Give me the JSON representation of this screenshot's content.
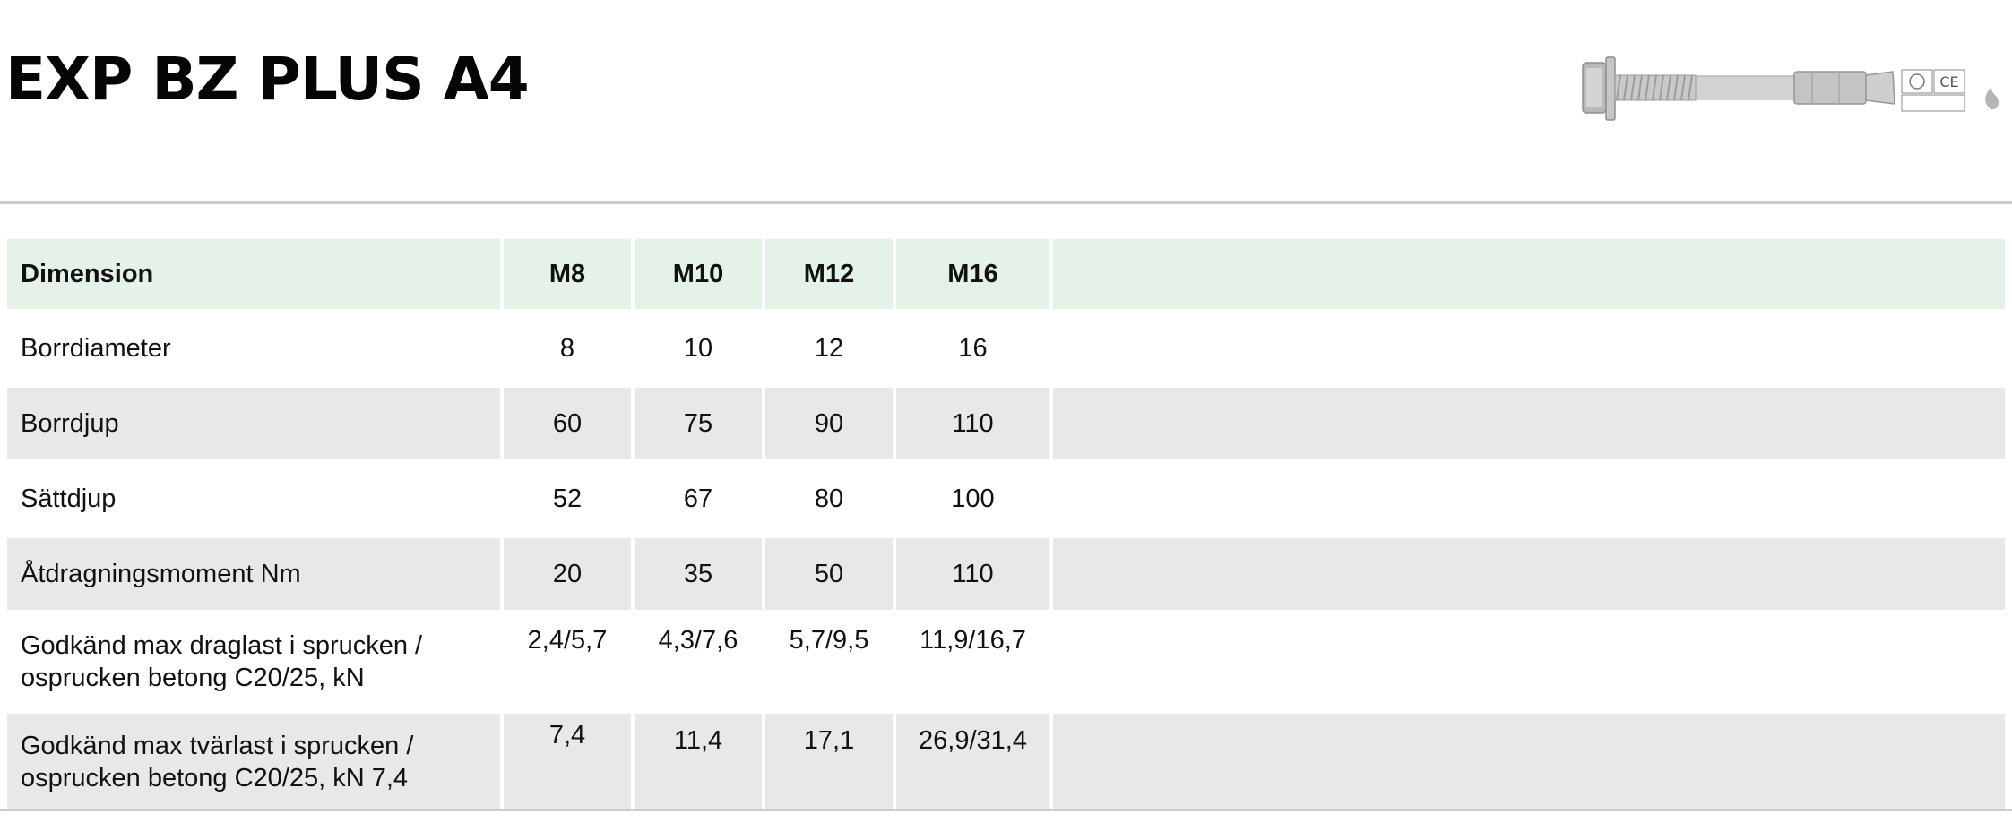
{
  "page": {
    "title": "EXP BZ PLUS A4"
  },
  "product_image": {
    "icon": "anchor-bolt-product-image",
    "badges": [
      "CE"
    ]
  },
  "table": {
    "header": [
      "Dimension",
      "M8",
      "M10",
      "M12",
      "M16"
    ],
    "rows": [
      {
        "label": "Borrdiameter",
        "values": [
          "8",
          "10",
          "12",
          "16"
        ]
      },
      {
        "label": "Borrdjup",
        "values": [
          "60",
          "75",
          "90",
          "110"
        ]
      },
      {
        "label": "Sättdjup",
        "values": [
          "52",
          "67",
          "80",
          "100"
        ]
      },
      {
        "label": "Åtdragningsmoment Nm",
        "values": [
          "20",
          "35",
          "50",
          "110"
        ]
      },
      {
        "label": "Godkänd max draglast i sprucken / osprucken betong C20/25, kN",
        "values": [
          "2,4/5,7",
          "4,3/7,6",
          "5,7/9,5",
          "11,9/16,7"
        ]
      },
      {
        "label": "Godkänd max tvärlast i sprucken / osprucken betong C20/25, kN 7,4",
        "values": [
          "7,4",
          "11,4",
          "17,1",
          "26,9/31,4"
        ]
      }
    ]
  }
}
